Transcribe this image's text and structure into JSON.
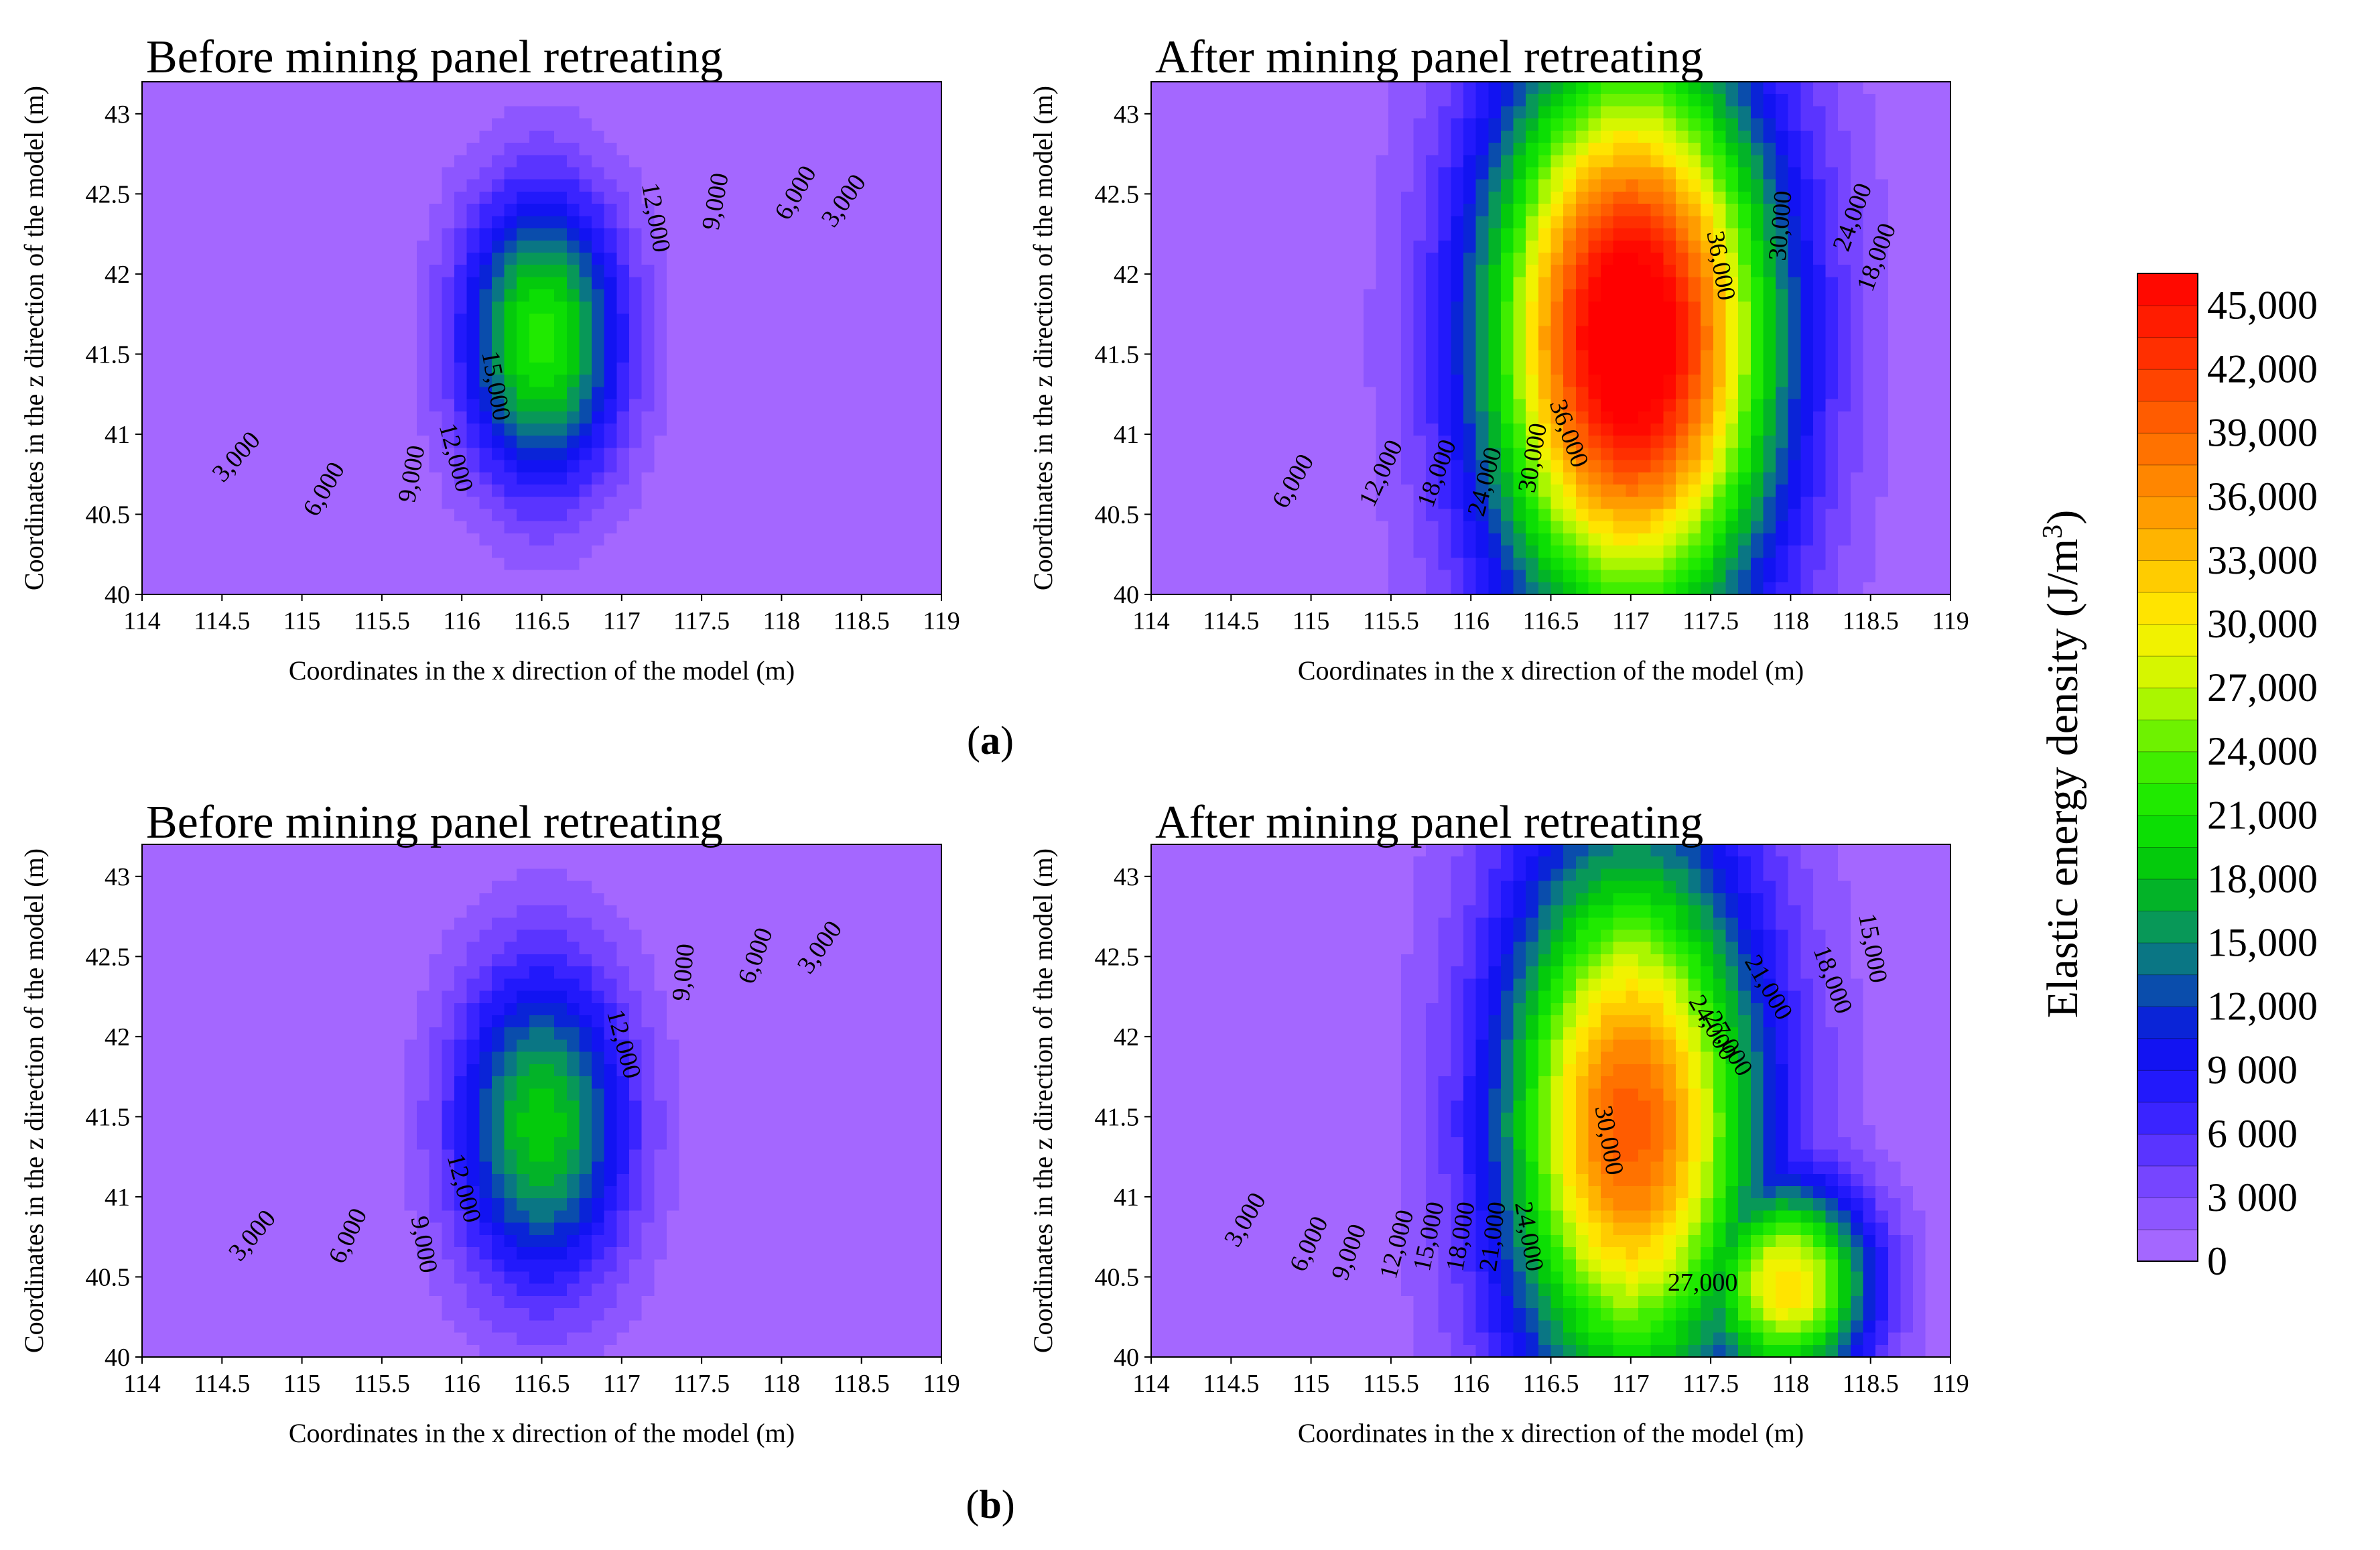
{
  "chart_data": [
    {
      "type": "contour",
      "id": "a-before",
      "subfigure": "a",
      "title": "Before mining panel retreating",
      "xlabel": "Coordinates in the x direction of the model (m)",
      "ylabel": "Coordinates in the z direction of the model (m)",
      "xlim": [
        114,
        119
      ],
      "ylim": [
        40,
        43.2
      ],
      "xticks": [
        "114",
        "114.5",
        "115",
        "115.5",
        "116",
        "116.5",
        "117",
        "117.5",
        "118",
        "118.5",
        "119"
      ],
      "yticks": [
        "40",
        "40.5",
        "41",
        "41.5",
        "42",
        "42.5",
        "43"
      ],
      "peak": {
        "x": 116.5,
        "z": 41.6,
        "value": 22000
      },
      "spread": {
        "sx": 0.5,
        "sz": 0.9
      },
      "background": {
        "center": 0,
        "edge": 0,
        "rise_x": 0.8
      },
      "contour_labels": [
        {
          "text": "3,000",
          "x": 114.6,
          "z": 40.85,
          "rot": -48
        },
        {
          "text": "6,000",
          "x": 115.15,
          "z": 40.65,
          "rot": -60
        },
        {
          "text": "9,000",
          "x": 115.7,
          "z": 40.75,
          "rot": -80
        },
        {
          "text": "12,000",
          "x": 115.95,
          "z": 40.85,
          "rot": 75
        },
        {
          "text": "15,000",
          "x": 116.2,
          "z": 41.3,
          "rot": 80
        },
        {
          "text": "12,000",
          "x": 117.2,
          "z": 42.35,
          "rot": 80
        },
        {
          "text": "9,000",
          "x": 117.6,
          "z": 42.45,
          "rot": -80
        },
        {
          "text": "6,000",
          "x": 118.1,
          "z": 42.5,
          "rot": -60
        },
        {
          "text": "3,000",
          "x": 118.4,
          "z": 42.45,
          "rot": -55
        }
      ]
    },
    {
      "type": "contour",
      "id": "a-after",
      "subfigure": "a",
      "title": "After mining panel retreating",
      "xlabel": "Coordinates in the x direction of the model (m)",
      "ylabel": "Coordinates in the z direction of the model (m)",
      "xlim": [
        114,
        119
      ],
      "ylim": [
        40,
        43.2
      ],
      "xticks": [
        "114",
        "114.5",
        "115",
        "115.5",
        "116",
        "116.5",
        "117",
        "117.5",
        "118",
        "118.5",
        "119"
      ],
      "yticks": [
        "40",
        "40.5",
        "41",
        "41.5",
        "42",
        "42.5",
        "43"
      ],
      "peak": {
        "x": 117.0,
        "z": 41.6,
        "value": 45000
      },
      "spread": {
        "sx": 0.85,
        "sz": 1.6
      },
      "background": {
        "center": 6000,
        "edge": 3000,
        "rise_x": 1.0
      },
      "contour_labels": [
        {
          "text": "6,000",
          "x": 114.9,
          "z": 40.7,
          "rot": -60
        },
        {
          "text": "12,000",
          "x": 115.45,
          "z": 40.75,
          "rot": -65
        },
        {
          "text": "18,000",
          "x": 115.8,
          "z": 40.75,
          "rot": -70
        },
        {
          "text": "24,000",
          "x": 116.1,
          "z": 40.7,
          "rot": -75
        },
        {
          "text": "30,000",
          "x": 116.4,
          "z": 40.85,
          "rot": -80
        },
        {
          "text": "36,000",
          "x": 116.6,
          "z": 41.0,
          "rot": 70
        },
        {
          "text": "36,000",
          "x": 117.55,
          "z": 42.05,
          "rot": 80
        },
        {
          "text": "30,000",
          "x": 117.95,
          "z": 42.3,
          "rot": -85
        },
        {
          "text": "24,000",
          "x": 118.4,
          "z": 42.35,
          "rot": -70
        },
        {
          "text": "18,000",
          "x": 118.55,
          "z": 42.1,
          "rot": -70
        }
      ]
    },
    {
      "type": "contour",
      "id": "b-before",
      "subfigure": "b",
      "title": "Before mining panel retreating",
      "xlabel": "Coordinates in the x direction of the model (m)",
      "ylabel": "Coordinates in the z direction of the model (m)",
      "xlim": [
        114,
        119
      ],
      "ylim": [
        40,
        43.2
      ],
      "xticks": [
        "114",
        "114.5",
        "115",
        "115.5",
        "116",
        "116.5",
        "117",
        "117.5",
        "118",
        "118.5",
        "119"
      ],
      "yticks": [
        "40",
        "40.5",
        "41",
        "41.5",
        "42",
        "42.5",
        "43"
      ],
      "peak": {
        "x": 116.5,
        "z": 41.45,
        "value": 19000
      },
      "spread": {
        "sx": 0.55,
        "sz": 1.0
      },
      "background": {
        "center": 0,
        "edge": 0,
        "rise_x": 0.8
      },
      "contour_labels": [
        {
          "text": "3,000",
          "x": 114.7,
          "z": 40.75,
          "rot": -50
        },
        {
          "text": "6,000",
          "x": 115.3,
          "z": 40.75,
          "rot": -65
        },
        {
          "text": "9,000",
          "x": 115.75,
          "z": 40.7,
          "rot": 80
        },
        {
          "text": "12,000",
          "x": 116.0,
          "z": 41.05,
          "rot": 75
        },
        {
          "text": "12,000",
          "x": 117.0,
          "z": 41.95,
          "rot": 75
        },
        {
          "text": "9,000",
          "x": 117.4,
          "z": 42.4,
          "rot": -85
        },
        {
          "text": "6,000",
          "x": 117.85,
          "z": 42.5,
          "rot": -70
        },
        {
          "text": "3,000",
          "x": 118.25,
          "z": 42.55,
          "rot": -55
        }
      ]
    },
    {
      "type": "contour",
      "id": "b-after",
      "subfigure": "b",
      "title": "After mining panel retreating",
      "xlabel": "Coordinates in the x direction of the model (m)",
      "ylabel": "Coordinates in the z direction of the model (m)",
      "xlim": [
        114,
        119
      ],
      "ylim": [
        40,
        43.2
      ],
      "xticks": [
        "114",
        "114.5",
        "115",
        "115.5",
        "116",
        "116.5",
        "117",
        "117.5",
        "118",
        "118.5",
        "119"
      ],
      "yticks": [
        "40",
        "40.5",
        "41",
        "41.5",
        "42",
        "42.5",
        "43"
      ],
      "peak": {
        "x": 117.0,
        "z": 41.45,
        "value": 34000
      },
      "spread": {
        "sx": 0.75,
        "sz": 1.5
      },
      "secondary": {
        "x": 118.0,
        "z": 40.45,
        "value": 29000,
        "sx": 0.5,
        "sz": 0.6
      },
      "background": {
        "center": 6000,
        "edge": 3000,
        "rise_x": 1.0
      },
      "contour_labels": [
        {
          "text": "3,000",
          "x": 114.6,
          "z": 40.85,
          "rot": -60
        },
        {
          "text": "6,000",
          "x": 115.0,
          "z": 40.7,
          "rot": -65
        },
        {
          "text": "9,000",
          "x": 115.25,
          "z": 40.65,
          "rot": -70
        },
        {
          "text": "12,000",
          "x": 115.55,
          "z": 40.7,
          "rot": -75
        },
        {
          "text": "15,000",
          "x": 115.75,
          "z": 40.75,
          "rot": -78
        },
        {
          "text": "18,000",
          "x": 115.95,
          "z": 40.75,
          "rot": -80
        },
        {
          "text": "21,000",
          "x": 116.15,
          "z": 40.75,
          "rot": -82
        },
        {
          "text": "24,000",
          "x": 116.35,
          "z": 40.75,
          "rot": 80
        },
        {
          "text": "30,000",
          "x": 116.85,
          "z": 41.35,
          "rot": 80
        },
        {
          "text": "27,000",
          "x": 117.45,
          "z": 40.45,
          "rot": 0
        },
        {
          "text": "24,000",
          "x": 117.5,
          "z": 42.05,
          "rot": 60
        },
        {
          "text": "27,000",
          "x": 117.6,
          "z": 41.95,
          "rot": 60
        },
        {
          "text": "21,000",
          "x": 117.85,
          "z": 42.3,
          "rot": 60
        },
        {
          "text": "18,000",
          "x": 118.25,
          "z": 42.35,
          "rot": 70
        },
        {
          "text": "15,000",
          "x": 118.5,
          "z": 42.55,
          "rot": 80
        }
      ]
    }
  ],
  "subfigure_labels": {
    "a": "a",
    "b": "b"
  },
  "colorbar": {
    "label": "Elastic energy density (J/m",
    "label_superscript": "3",
    "label_close": ")",
    "min": 0,
    "max": 46500,
    "level_step": 1500,
    "ticks": [
      {
        "value": 0,
        "text": "0"
      },
      {
        "value": 3000,
        "text": "3 000"
      },
      {
        "value": 6000,
        "text": "6 000"
      },
      {
        "value": 9000,
        "text": "9 000"
      },
      {
        "value": 12000,
        "text": "12,000"
      },
      {
        "value": 15000,
        "text": "15,000"
      },
      {
        "value": 18000,
        "text": "18,000"
      },
      {
        "value": 21000,
        "text": "21,000"
      },
      {
        "value": 24000,
        "text": "24,000"
      },
      {
        "value": 27000,
        "text": "27,000"
      },
      {
        "value": 30000,
        "text": "30,000"
      },
      {
        "value": 33000,
        "text": "33,000"
      },
      {
        "value": 36000,
        "text": "36,000"
      },
      {
        "value": 39000,
        "text": "39,000"
      },
      {
        "value": 42000,
        "text": "42,000"
      },
      {
        "value": 45000,
        "text": "45,000"
      }
    ],
    "colors": [
      {
        "v": 0,
        "c": "#b070ff"
      },
      {
        "v": 4500,
        "c": "#6a3cff"
      },
      {
        "v": 7500,
        "c": "#2a1cff"
      },
      {
        "v": 10500,
        "c": "#0a10ee"
      },
      {
        "v": 12000,
        "c": "#0a38c0"
      },
      {
        "v": 15000,
        "c": "#0a8a70"
      },
      {
        "v": 18000,
        "c": "#00c010"
      },
      {
        "v": 21000,
        "c": "#10e800"
      },
      {
        "v": 24000,
        "c": "#50f000"
      },
      {
        "v": 27000,
        "c": "#c8f800"
      },
      {
        "v": 30000,
        "c": "#fff000"
      },
      {
        "v": 33000,
        "c": "#ffc000"
      },
      {
        "v": 36000,
        "c": "#ff9000"
      },
      {
        "v": 39000,
        "c": "#ff6800"
      },
      {
        "v": 42000,
        "c": "#ff3800"
      },
      {
        "v": 46500,
        "c": "#ff0000"
      }
    ]
  }
}
